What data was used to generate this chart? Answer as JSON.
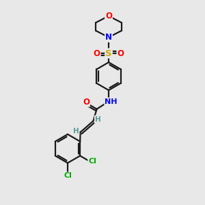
{
  "bg_color": "#e8e8e8",
  "bond_color": "#1a1a1a",
  "colors": {
    "O": "#ff0000",
    "N": "#0000ff",
    "S": "#ccaa00",
    "Cl": "#00aa00",
    "C": "#1a1a1a",
    "H": "#5a9a9a"
  },
  "figsize": [
    3.0,
    3.0
  ],
  "dpi": 100
}
